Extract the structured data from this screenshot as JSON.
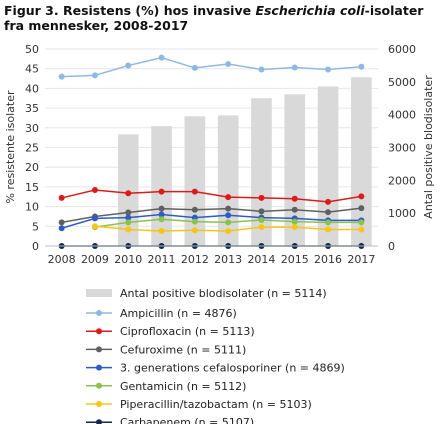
{
  "title": {
    "prefix": "Figur 3. Resistens (%) hos invasive ",
    "italic": "Escherichia coli",
    "suffix": "-isolater fra mennesker, 2008-2017"
  },
  "chart_data": {
    "type": "bar+line",
    "x": [
      "2008",
      "2009",
      "2010",
      "2011",
      "2012",
      "2013",
      "2014",
      "2015",
      "2016",
      "2017"
    ],
    "ylabel_left": "% resistente isolater",
    "ylabel_right": "Antal positive blodisolater",
    "ylim_left": [
      0,
      50
    ],
    "ylim_right": [
      0,
      6000
    ],
    "yticks_left": [
      "0",
      "5",
      "10",
      "15",
      "20",
      "25",
      "30",
      "35",
      "40",
      "45",
      "50"
    ],
    "yticks_right": [
      "0",
      "1000",
      "2000",
      "3000",
      "4000",
      "5000",
      "6000"
    ],
    "bars": {
      "name": "Antal positive blodisolater (n = 5114)",
      "color": "#d9d9d9",
      "values": [
        null,
        null,
        3400,
        3650,
        3950,
        3980,
        4500,
        4620,
        4860,
        5140
      ]
    },
    "series": [
      {
        "name": "Ampicillin (n = 4876)",
        "color": "#8fb9e3",
        "values": [
          43.0,
          43.3,
          45.8,
          47.8,
          45.2,
          46.2,
          44.8,
          45.3,
          44.8,
          45.5
        ]
      },
      {
        "name": "Ciprofloxacin (n = 5113)",
        "color": "#dd1a1a",
        "values": [
          12.2,
          14.2,
          13.4,
          13.8,
          13.8,
          12.4,
          12.2,
          12.0,
          11.2,
          12.6
        ]
      },
      {
        "name": "Cefuroxime (n = 5111)",
        "color": "#606060",
        "values": [
          6.0,
          7.5,
          8.5,
          9.5,
          9.2,
          9.5,
          8.8,
          9.2,
          8.6,
          9.6
        ]
      },
      {
        "name": "3. generations cefalosporiner (n = 4869)",
        "color": "#2d5cc8",
        "values": [
          4.5,
          7.0,
          7.2,
          8.0,
          7.2,
          7.8,
          7.2,
          7.0,
          6.5,
          6.5
        ]
      },
      {
        "name": "Gentamicin (n = 5112)",
        "color": "#8bc34a",
        "values": [
          null,
          4.8,
          6.0,
          6.8,
          6.2,
          6.0,
          6.6,
          6.2,
          6.0,
          6.0
        ]
      },
      {
        "name": "Piperacillin/tazobactam (n = 5103)",
        "color": "#f5c518",
        "values": [
          null,
          5.0,
          4.2,
          3.8,
          4.0,
          3.8,
          4.8,
          4.8,
          4.2,
          4.2
        ]
      },
      {
        "name": "Carbapenem (n = 5107)",
        "color": "#12284a",
        "values": [
          0,
          0,
          0,
          0,
          0,
          0,
          0,
          0,
          0,
          0
        ]
      }
    ]
  }
}
